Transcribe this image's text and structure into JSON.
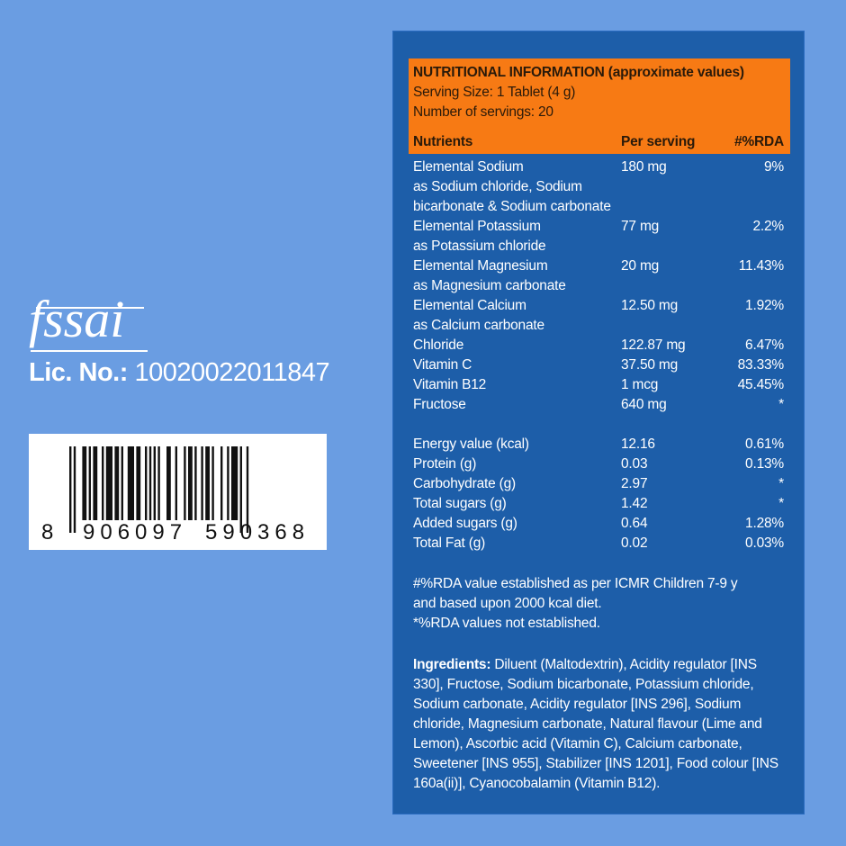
{
  "fssai": {
    "logo": "fssai",
    "lic_label": "Lic. No.:",
    "lic_number": "10020022011847"
  },
  "barcode": {
    "first": "8",
    "left": "906097",
    "right": "590368"
  },
  "panel": {
    "title_bold": "NUTRITIONAL INFORMATION",
    "title_rest": " (approximate values)",
    "serving_size": "Serving Size: 1 Tablet (4 g)",
    "servings": "Number of servings: 20",
    "headers": {
      "nutrients": "Nutrients",
      "per_serving": "Per serving",
      "rda": "#%RDA"
    },
    "rows": [
      {
        "lines": [
          "Elemental Sodium",
          "as Sodium chloride, Sodium",
          "bicarbonate & Sodium carbonate"
        ],
        "value": "180 mg",
        "rda": "9%"
      },
      {
        "lines": [
          "Elemental Potassium",
          "as Potassium chloride"
        ],
        "value": "77 mg",
        "rda": "2.2%"
      },
      {
        "lines": [
          "Elemental Magnesium",
          "as Magnesium carbonate"
        ],
        "value": "20 mg",
        "rda": "11.43%"
      },
      {
        "lines": [
          "Elemental Calcium",
          "as Calcium carbonate"
        ],
        "value": "12.50 mg",
        "rda": "1.92%"
      },
      {
        "lines": [
          "Chloride"
        ],
        "value": "122.87 mg",
        "rda": "6.47%"
      },
      {
        "lines": [
          "Vitamin C"
        ],
        "value": "37.50 mg",
        "rda": "83.33%"
      },
      {
        "lines": [
          "Vitamin B12"
        ],
        "value": "1 mcg",
        "rda": "45.45%"
      },
      {
        "lines": [
          "Fructose"
        ],
        "value": "640 mg",
        "rda": "*"
      },
      {
        "lines": [
          ""
        ],
        "value": "",
        "rda": ""
      },
      {
        "lines": [
          "Energy value (kcal)"
        ],
        "value": "12.16",
        "rda": "0.61%"
      },
      {
        "lines": [
          "Protein (g)"
        ],
        "value": "0.03",
        "rda": "0.13%"
      },
      {
        "lines": [
          "Carbohydrate (g)"
        ],
        "value": "2.97",
        "rda": "*"
      },
      {
        "lines": [
          "Total sugars (g)"
        ],
        "value": "1.42",
        "rda": "*"
      },
      {
        "lines": [
          "Added sugars (g)"
        ],
        "value": "0.64",
        "rda": "1.28%"
      },
      {
        "lines": [
          "Total Fat (g)"
        ],
        "value": "0.02",
        "rda": "0.03%"
      }
    ],
    "footnote1": "#%RDA value established as per ICMR Children 7-9 y",
    "footnote2": "and based upon 2000 kcal diet.",
    "footnote3": "*%RDA values not established.",
    "ingredients_label": "Ingredients:",
    "ingredients_text": " Diluent (Maltodextrin), Acidity regulator [INS 330], Fructose, Sodium bicarbonate, Potassium chloride, Sodium carbonate, Acidity regulator [INS 296], Sodium chloride, Magnesium carbonate, Natural flavour (Lime and Lemon), Ascorbic acid (Vitamin C), Calcium carbonate, Sweetener [INS 955], Stabilizer [INS 1201], Food colour [INS 160a(ii)], Cyanocobalamin (Vitamin B12)."
  },
  "colors": {
    "background": "#6a9de2",
    "panel": "#1d5ea9",
    "header": "#f77a14"
  }
}
